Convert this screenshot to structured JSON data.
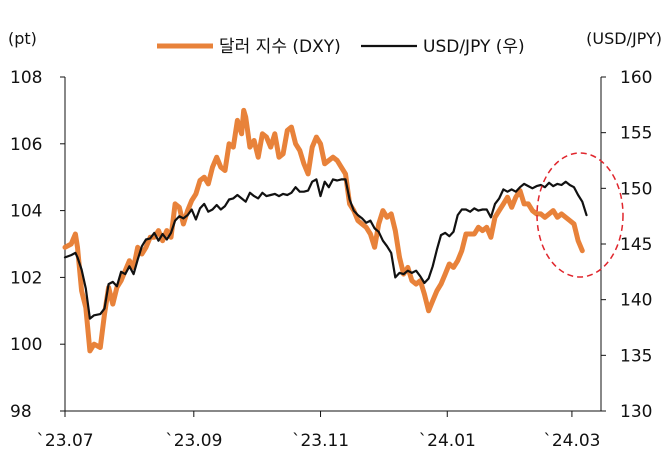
{
  "chart_data": {
    "type": "line",
    "left_unit": "(pt)",
    "right_unit": "(USD/JPY)",
    "y_left": {
      "min": 98,
      "max": 108,
      "ticks": [
        98,
        100,
        102,
        104,
        106,
        108
      ]
    },
    "y_right": {
      "min": 130,
      "max": 160,
      "ticks": [
        130,
        135,
        140,
        145,
        150,
        155,
        160
      ]
    },
    "x_ticks": [
      {
        "label": "`23.07",
        "t": 0
      },
      {
        "label": "`23.09",
        "t": 62
      },
      {
        "label": "`23.11",
        "t": 123
      },
      {
        "label": "`24.01",
        "t": 184
      },
      {
        "label": "`24.03",
        "t": 244
      }
    ],
    "x_end": 258,
    "series": [
      {
        "name": "달러 지수 (DXY)",
        "axis": "left",
        "color": "#E8823A",
        "width": 5,
        "points": [
          [
            0,
            102.9
          ],
          [
            3,
            103.0
          ],
          [
            5,
            103.3
          ],
          [
            6,
            102.9
          ],
          [
            8,
            101.6
          ],
          [
            10,
            101.1
          ],
          [
            12,
            99.8
          ],
          [
            14,
            100.0
          ],
          [
            17,
            99.9
          ],
          [
            19,
            100.9
          ],
          [
            21,
            101.7
          ],
          [
            23,
            101.2
          ],
          [
            25,
            101.7
          ],
          [
            27,
            101.9
          ],
          [
            29,
            102.2
          ],
          [
            31,
            102.5
          ],
          [
            33,
            102.3
          ],
          [
            35,
            102.9
          ],
          [
            37,
            102.7
          ],
          [
            39,
            102.9
          ],
          [
            41,
            103.2
          ],
          [
            43,
            103.2
          ],
          [
            45,
            103.4
          ],
          [
            47,
            103.1
          ],
          [
            49,
            103.4
          ],
          [
            51,
            103.2
          ],
          [
            53,
            104.2
          ],
          [
            55,
            104.1
          ],
          [
            57,
            103.6
          ],
          [
            59,
            104.0
          ],
          [
            61,
            104.3
          ],
          [
            63,
            104.5
          ],
          [
            65,
            104.9
          ],
          [
            67,
            105.0
          ],
          [
            69,
            104.8
          ],
          [
            71,
            105.3
          ],
          [
            73,
            105.6
          ],
          [
            75,
            105.3
          ],
          [
            77,
            105.2
          ],
          [
            79,
            106.0
          ],
          [
            81,
            105.9
          ],
          [
            83,
            106.7
          ],
          [
            85,
            106.3
          ],
          [
            86,
            107.0
          ],
          [
            87,
            106.8
          ],
          [
            89,
            105.9
          ],
          [
            91,
            106.1
          ],
          [
            93,
            105.6
          ],
          [
            95,
            106.3
          ],
          [
            97,
            106.2
          ],
          [
            99,
            105.9
          ],
          [
            101,
            106.3
          ],
          [
            103,
            105.6
          ],
          [
            105,
            105.7
          ],
          [
            107,
            106.4
          ],
          [
            109,
            106.5
          ],
          [
            111,
            106.0
          ],
          [
            113,
            105.8
          ],
          [
            115,
            105.4
          ],
          [
            117,
            105.1
          ],
          [
            119,
            105.9
          ],
          [
            121,
            106.2
          ],
          [
            123,
            106.0
          ],
          [
            125,
            105.4
          ],
          [
            127,
            105.5
          ],
          [
            129,
            105.6
          ],
          [
            131,
            105.5
          ],
          [
            133,
            105.3
          ],
          [
            135,
            105.1
          ],
          [
            137,
            104.2
          ],
          [
            139,
            104.0
          ],
          [
            141,
            103.7
          ],
          [
            143,
            103.6
          ],
          [
            145,
            103.5
          ],
          [
            147,
            103.3
          ],
          [
            149,
            102.9
          ],
          [
            151,
            103.6
          ],
          [
            153,
            104.0
          ],
          [
            155,
            103.8
          ],
          [
            157,
            103.9
          ],
          [
            159,
            103.4
          ],
          [
            161,
            102.6
          ],
          [
            163,
            102.1
          ],
          [
            165,
            102.3
          ],
          [
            167,
            101.9
          ],
          [
            169,
            101.8
          ],
          [
            171,
            101.9
          ],
          [
            173,
            101.5
          ],
          [
            175,
            101.0
          ],
          [
            177,
            101.3
          ],
          [
            179,
            101.6
          ],
          [
            181,
            101.8
          ],
          [
            183,
            102.1
          ],
          [
            185,
            102.4
          ],
          [
            187,
            102.3
          ],
          [
            189,
            102.5
          ],
          [
            191,
            102.8
          ],
          [
            193,
            103.3
          ],
          [
            195,
            103.3
          ],
          [
            197,
            103.3
          ],
          [
            199,
            103.5
          ],
          [
            201,
            103.4
          ],
          [
            203,
            103.5
          ],
          [
            205,
            103.2
          ],
          [
            207,
            103.8
          ],
          [
            209,
            104.0
          ],
          [
            211,
            104.2
          ],
          [
            213,
            104.4
          ],
          [
            215,
            104.1
          ],
          [
            217,
            104.4
          ],
          [
            219,
            104.6
          ],
          [
            221,
            104.2
          ],
          [
            223,
            104.2
          ],
          [
            225,
            104.0
          ],
          [
            227,
            103.9
          ],
          [
            229,
            103.9
          ],
          [
            231,
            103.8
          ],
          [
            233,
            103.9
          ],
          [
            235,
            104.0
          ],
          [
            237,
            103.8
          ],
          [
            239,
            103.9
          ],
          [
            241,
            103.8
          ],
          [
            243,
            103.7
          ],
          [
            245,
            103.6
          ],
          [
            247,
            103.1
          ],
          [
            249,
            102.8
          ]
        ]
      },
      {
        "name": "USD/JPY (우)",
        "axis": "right",
        "color": "#111111",
        "width": 2.2,
        "points": [
          [
            0,
            143.8
          ],
          [
            3,
            144.0
          ],
          [
            5,
            144.2
          ],
          [
            6,
            143.8
          ],
          [
            8,
            142.7
          ],
          [
            10,
            141.0
          ],
          [
            12,
            138.3
          ],
          [
            14,
            138.6
          ],
          [
            17,
            138.7
          ],
          [
            19,
            139.2
          ],
          [
            21,
            141.4
          ],
          [
            23,
            141.6
          ],
          [
            25,
            141.2
          ],
          [
            27,
            142.5
          ],
          [
            29,
            142.3
          ],
          [
            31,
            143.0
          ],
          [
            33,
            142.3
          ],
          [
            35,
            143.6
          ],
          [
            37,
            144.8
          ],
          [
            39,
            145.4
          ],
          [
            41,
            145.5
          ],
          [
            43,
            146.0
          ],
          [
            45,
            145.3
          ],
          [
            47,
            145.9
          ],
          [
            49,
            145.4
          ],
          [
            51,
            146.0
          ],
          [
            53,
            147.1
          ],
          [
            55,
            147.5
          ],
          [
            57,
            147.3
          ],
          [
            59,
            147.6
          ],
          [
            61,
            148.1
          ],
          [
            63,
            147.2
          ],
          [
            65,
            148.2
          ],
          [
            67,
            148.6
          ],
          [
            69,
            147.9
          ],
          [
            71,
            148.1
          ],
          [
            73,
            148.5
          ],
          [
            75,
            148.1
          ],
          [
            77,
            148.4
          ],
          [
            79,
            149.0
          ],
          [
            81,
            149.1
          ],
          [
            83,
            149.4
          ],
          [
            85,
            149.1
          ],
          [
            87,
            148.8
          ],
          [
            89,
            149.6
          ],
          [
            91,
            149.3
          ],
          [
            93,
            149.1
          ],
          [
            95,
            149.6
          ],
          [
            97,
            149.3
          ],
          [
            99,
            149.4
          ],
          [
            101,
            149.5
          ],
          [
            103,
            149.3
          ],
          [
            105,
            149.5
          ],
          [
            107,
            149.4
          ],
          [
            109,
            149.6
          ],
          [
            111,
            150.1
          ],
          [
            113,
            149.7
          ],
          [
            115,
            149.7
          ],
          [
            117,
            149.8
          ],
          [
            119,
            150.6
          ],
          [
            121,
            150.8
          ],
          [
            123,
            149.3
          ],
          [
            125,
            150.6
          ],
          [
            127,
            150.1
          ],
          [
            129,
            150.8
          ],
          [
            131,
            150.7
          ],
          [
            133,
            150.8
          ],
          [
            135,
            150.8
          ],
          [
            137,
            149.0
          ],
          [
            139,
            148.0
          ],
          [
            141,
            147.6
          ],
          [
            143,
            147.3
          ],
          [
            145,
            146.9
          ],
          [
            147,
            147.1
          ],
          [
            149,
            146.4
          ],
          [
            151,
            146.1
          ],
          [
            153,
            145.3
          ],
          [
            155,
            144.8
          ],
          [
            157,
            144.2
          ],
          [
            159,
            142.0
          ],
          [
            161,
            142.4
          ],
          [
            163,
            142.3
          ],
          [
            165,
            142.6
          ],
          [
            167,
            142.4
          ],
          [
            169,
            142.6
          ],
          [
            171,
            142.1
          ],
          [
            173,
            141.5
          ],
          [
            175,
            141.9
          ],
          [
            177,
            143.0
          ],
          [
            179,
            144.5
          ],
          [
            181,
            145.8
          ],
          [
            183,
            146.0
          ],
          [
            185,
            145.7
          ],
          [
            187,
            146.1
          ],
          [
            189,
            147.6
          ],
          [
            191,
            148.1
          ],
          [
            193,
            148.1
          ],
          [
            195,
            147.9
          ],
          [
            197,
            148.2
          ],
          [
            199,
            148.0
          ],
          [
            201,
            148.1
          ],
          [
            203,
            148.1
          ],
          [
            205,
            147.4
          ],
          [
            207,
            148.6
          ],
          [
            209,
            149.1
          ],
          [
            211,
            149.9
          ],
          [
            213,
            149.7
          ],
          [
            215,
            149.9
          ],
          [
            217,
            149.7
          ],
          [
            219,
            150.1
          ],
          [
            221,
            150.4
          ],
          [
            223,
            150.2
          ],
          [
            225,
            150.0
          ],
          [
            227,
            150.2
          ],
          [
            229,
            150.3
          ],
          [
            231,
            150.1
          ],
          [
            233,
            150.5
          ],
          [
            235,
            150.2
          ],
          [
            237,
            150.4
          ],
          [
            239,
            150.3
          ],
          [
            241,
            150.6
          ],
          [
            243,
            150.3
          ],
          [
            245,
            150.1
          ],
          [
            247,
            149.4
          ],
          [
            249,
            148.8
          ],
          [
            251,
            147.6
          ]
        ]
      }
    ],
    "highlight_color": "#E0262D"
  }
}
